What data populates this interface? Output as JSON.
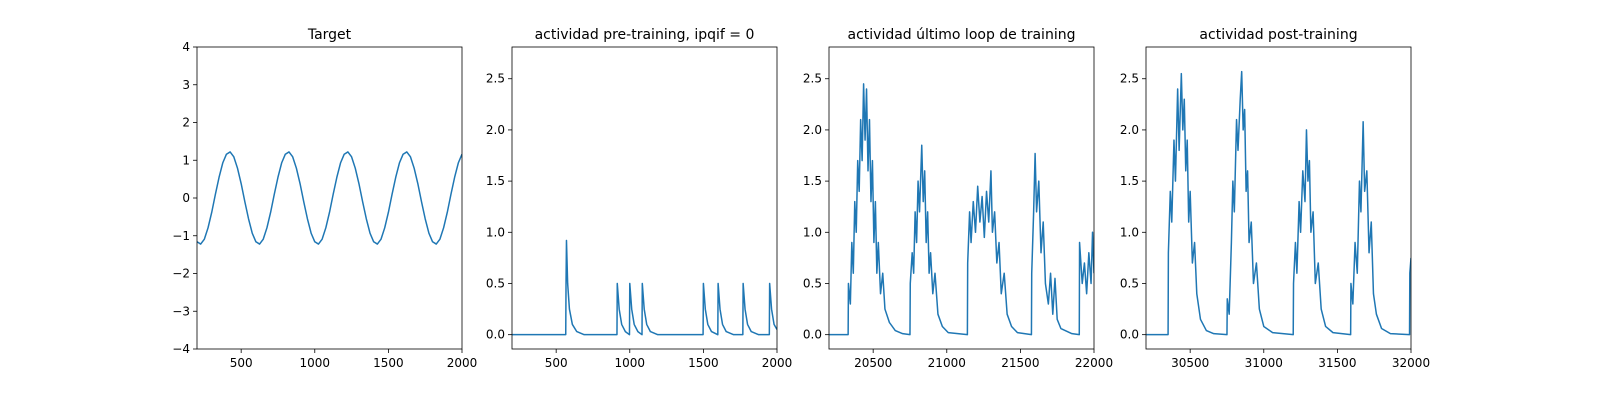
{
  "chart_data": [
    {
      "type": "line",
      "title": "Target",
      "x": [
        200,
        225,
        250,
        275,
        300,
        325,
        350,
        375,
        400,
        425,
        450,
        475,
        500,
        525,
        550,
        575,
        600,
        625,
        650,
        675,
        700,
        725,
        750,
        775,
        800,
        825,
        850,
        875,
        900,
        925,
        950,
        975,
        1000,
        1025,
        1050,
        1075,
        1100,
        1125,
        1150,
        1175,
        1200,
        1225,
        1250,
        1275,
        1300,
        1325,
        1350,
        1375,
        1400,
        1425,
        1450,
        1475,
        1500,
        1525,
        1550,
        1575,
        1600,
        1625,
        1650,
        1675,
        1700,
        1725,
        1750,
        1775,
        1800,
        1825,
        1850,
        1875,
        1900,
        1925,
        1950,
        1975,
        2000
      ],
      "series": [
        {
          "color": "#1f77b4",
          "values": [
            -1.16,
            -1.22,
            -1.09,
            -0.79,
            -0.38,
            0.1,
            0.55,
            0.93,
            1.16,
            1.22,
            1.09,
            0.79,
            0.38,
            -0.1,
            -0.55,
            -0.93,
            -1.16,
            -1.22,
            -1.09,
            -0.79,
            -0.38,
            0.1,
            0.55,
            0.93,
            1.16,
            1.22,
            1.09,
            0.79,
            0.38,
            -0.1,
            -0.55,
            -0.93,
            -1.16,
            -1.22,
            -1.09,
            -0.79,
            -0.38,
            0.1,
            0.55,
            0.93,
            1.16,
            1.22,
            1.09,
            0.79,
            0.38,
            -0.1,
            -0.55,
            -0.93,
            -1.16,
            -1.22,
            -1.09,
            -0.79,
            -0.38,
            0.1,
            0.55,
            0.93,
            1.16,
            1.22,
            1.09,
            0.79,
            0.38,
            -0.1,
            -0.55,
            -0.93,
            -1.16,
            -1.22,
            -1.09,
            -0.79,
            -0.38,
            0.1,
            0.55,
            0.93,
            1.16
          ]
        }
      ],
      "xlim": [
        200,
        2000
      ],
      "xticks": [
        500,
        1000,
        1500,
        2000
      ],
      "ylim": [
        -4,
        4
      ],
      "yticks": [
        {
          "value": -4,
          "label": "−4"
        },
        {
          "value": -3,
          "label": "−3"
        },
        {
          "value": -2,
          "label": "−2"
        },
        {
          "value": -1,
          "label": "−1"
        },
        0,
        1,
        2,
        3,
        4
      ]
    },
    {
      "type": "line",
      "title": "actividad pre-training, ipqif = 0",
      "x": [
        200,
        565,
        567,
        570,
        578,
        590,
        610,
        640,
        690,
        913,
        915,
        928,
        945,
        970,
        998,
        1000,
        1013,
        1030,
        1055,
        1083,
        1085,
        1098,
        1115,
        1140,
        1190,
        1498,
        1500,
        1513,
        1530,
        1555,
        1598,
        1600,
        1613,
        1630,
        1655,
        1705,
        1768,
        1770,
        1783,
        1800,
        1825,
        1875,
        1948,
        1950,
        1963,
        1980,
        2000
      ],
      "series": [
        {
          "color": "#1f77b4",
          "values": [
            0,
            0,
            0.5,
            0.92,
            0.5,
            0.25,
            0.1,
            0.03,
            0,
            0,
            0.5,
            0.25,
            0.1,
            0.03,
            0,
            0.5,
            0.25,
            0.1,
            0.03,
            0,
            0.5,
            0.25,
            0.1,
            0.03,
            0,
            0,
            0.5,
            0.25,
            0.1,
            0.03,
            0,
            0.5,
            0.25,
            0.1,
            0.03,
            0,
            0,
            0.5,
            0.25,
            0.1,
            0.03,
            0,
            0,
            0.5,
            0.25,
            0.1,
            0.05
          ]
        }
      ],
      "xlim": [
        200,
        2000
      ],
      "xticks": [
        500,
        1000,
        1500,
        2000
      ],
      "ylim": [
        -0.14,
        2.81
      ],
      "yticks": [
        {
          "value": 0,
          "label": "0.0"
        },
        0.5,
        {
          "value": 1,
          "label": "1.0"
        },
        1.5,
        {
          "value": 2,
          "label": "2.0"
        },
        2.5
      ]
    },
    {
      "type": "line",
      "title": "actividad último loop de training",
      "x": [
        20200,
        20330,
        20332,
        20345,
        20355,
        20365,
        20375,
        20385,
        20395,
        20405,
        20415,
        20425,
        20435,
        20445,
        20455,
        20465,
        20475,
        20485,
        20495,
        20505,
        20515,
        20525,
        20535,
        20550,
        20565,
        20580,
        20610,
        20650,
        20700,
        20750,
        20752,
        20765,
        20775,
        20785,
        20795,
        20805,
        20815,
        20830,
        20840,
        20850,
        20860,
        20870,
        20880,
        20890,
        20905,
        20920,
        20940,
        20970,
        21010,
        21140,
        21142,
        21155,
        21165,
        21180,
        21195,
        21210,
        21225,
        21240,
        21255,
        21270,
        21285,
        21300,
        21310,
        21325,
        21340,
        21355,
        21370,
        21390,
        21410,
        21440,
        21480,
        21575,
        21577,
        21590,
        21600,
        21610,
        21625,
        21640,
        21655,
        21670,
        21690,
        21705,
        21720,
        21735,
        21750,
        21775,
        21850,
        21900,
        21902,
        21920,
        21935,
        21950,
        21965,
        21980,
        21990,
        22000
      ],
      "series": [
        {
          "color": "#1f77b4",
          "values": [
            0,
            0,
            0.5,
            0.3,
            0.9,
            0.6,
            1.3,
            1.0,
            1.7,
            1.4,
            2.1,
            1.7,
            2.45,
            1.9,
            2.4,
            1.6,
            2.1,
            1.3,
            1.7,
            0.9,
            1.3,
            0.6,
            0.9,
            0.4,
            0.6,
            0.25,
            0.12,
            0.04,
            0.01,
            0,
            0.5,
            0.8,
            0.6,
            1.2,
            0.9,
            1.5,
            1.2,
            1.85,
            1.3,
            1.6,
            0.9,
            1.2,
            0.6,
            0.8,
            0.4,
            0.6,
            0.2,
            0.08,
            0.02,
            0,
            0.7,
            1.2,
            0.9,
            1.3,
            1.0,
            1.45,
            1.1,
            1.35,
            0.95,
            1.4,
            1.1,
            1.6,
            1.0,
            1.2,
            0.7,
            0.9,
            0.4,
            0.6,
            0.2,
            0.08,
            0.02,
            0,
            0.6,
            1.2,
            1.77,
            1.2,
            1.5,
            0.8,
            1.1,
            0.5,
            0.3,
            0.6,
            0.2,
            0.55,
            0.15,
            0.06,
            0.01,
            0,
            0.9,
            0.5,
            0.7,
            0.4,
            0.8,
            0.5,
            1.0,
            0.6
          ]
        }
      ],
      "xlim": [
        20200,
        22000
      ],
      "xticks": [
        20500,
        21000,
        21500,
        22000
      ],
      "ylim": [
        -0.14,
        2.81
      ],
      "yticks": [
        {
          "value": 0,
          "label": "0.0"
        },
        0.5,
        {
          "value": 1,
          "label": "1.0"
        },
        1.5,
        {
          "value": 2,
          "label": "2.0"
        },
        2.5
      ]
    },
    {
      "type": "line",
      "title": "actividad post-training",
      "x": [
        30200,
        30350,
        30352,
        30365,
        30375,
        30390,
        30400,
        30415,
        30425,
        30440,
        30450,
        30460,
        30470,
        30480,
        30490,
        30500,
        30515,
        30530,
        30545,
        30570,
        30610,
        30660,
        30750,
        30752,
        30765,
        30780,
        30790,
        30800,
        30815,
        30825,
        30840,
        30850,
        30860,
        30870,
        30880,
        30890,
        30900,
        30915,
        30930,
        30950,
        30970,
        31000,
        31060,
        31200,
        31202,
        31215,
        31225,
        31240,
        31250,
        31265,
        31280,
        31290,
        31300,
        31310,
        31320,
        31335,
        31350,
        31370,
        31390,
        31420,
        31470,
        31590,
        31592,
        31605,
        31620,
        31635,
        31650,
        31660,
        31675,
        31685,
        31700,
        31715,
        31730,
        31745,
        31765,
        31800,
        31860,
        31990,
        31992,
        32000
      ],
      "series": [
        {
          "color": "#1f77b4",
          "values": [
            0,
            0,
            0.8,
            1.4,
            1.1,
            1.9,
            1.5,
            2.4,
            1.8,
            2.55,
            2.0,
            2.3,
            1.6,
            1.9,
            1.1,
            1.4,
            0.7,
            0.9,
            0.4,
            0.15,
            0.04,
            0.01,
            0,
            0.35,
            0.2,
            0.9,
            1.5,
            1.2,
            2.1,
            1.8,
            2.3,
            2.57,
            2.0,
            2.2,
            1.4,
            1.6,
            0.9,
            1.1,
            0.5,
            0.7,
            0.25,
            0.08,
            0.02,
            0,
            0.5,
            0.9,
            0.6,
            1.3,
            1.0,
            1.6,
            1.3,
            2.0,
            1.5,
            1.7,
            1.0,
            1.2,
            0.5,
            0.7,
            0.25,
            0.08,
            0.02,
            0,
            0.5,
            0.3,
            0.9,
            0.6,
            1.5,
            1.2,
            2.08,
            1.4,
            1.6,
            0.8,
            1.1,
            0.4,
            0.2,
            0.06,
            0.01,
            0,
            0.6,
            0.75
          ]
        }
      ],
      "xlim": [
        30200,
        32000
      ],
      "xticks": [
        30500,
        31000,
        31500,
        32000
      ],
      "ylim": [
        -0.14,
        2.81
      ],
      "yticks": [
        {
          "value": 0,
          "label": "0.0"
        },
        0.5,
        {
          "value": 1,
          "label": "1.0"
        },
        1.5,
        {
          "value": 2,
          "label": "2.0"
        },
        2.5
      ]
    }
  ]
}
